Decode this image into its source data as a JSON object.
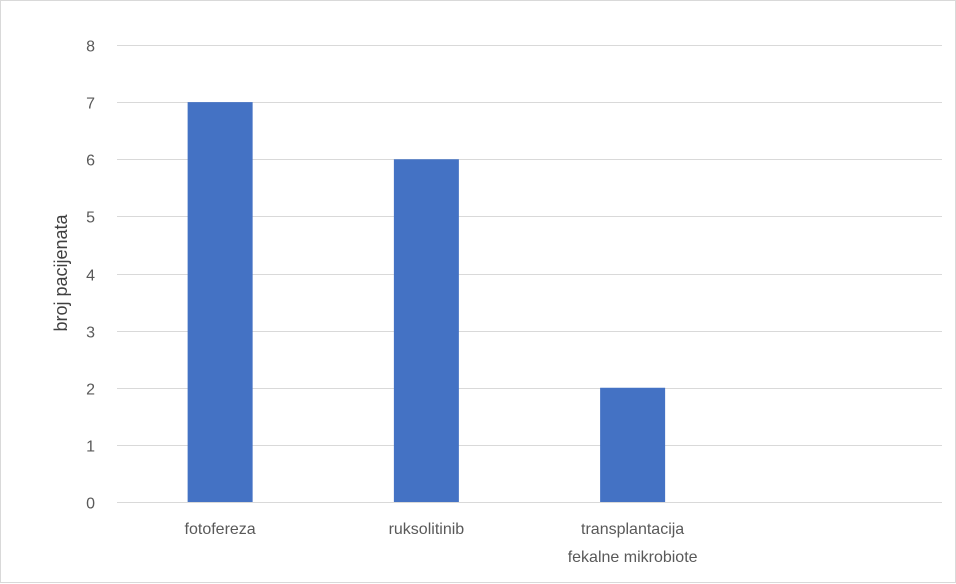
{
  "chart_data": {
    "type": "bar",
    "title": "",
    "xlabel": "",
    "ylabel": "broj pacijenata",
    "ylim": [
      0,
      8
    ],
    "yticks": [
      0,
      1,
      2,
      3,
      4,
      5,
      6,
      7,
      8
    ],
    "grid": true,
    "legend": "none",
    "categories": [
      [
        "fotofereza"
      ],
      [
        "ruksolitinib"
      ],
      [
        "transplantacija",
        "fekalne mikrobiote"
      ],
      [
        ""
      ]
    ],
    "values": [
      7,
      6,
      2,
      null
    ],
    "bar_color": "#4472C4",
    "grid_color": "#d9d9d9"
  }
}
